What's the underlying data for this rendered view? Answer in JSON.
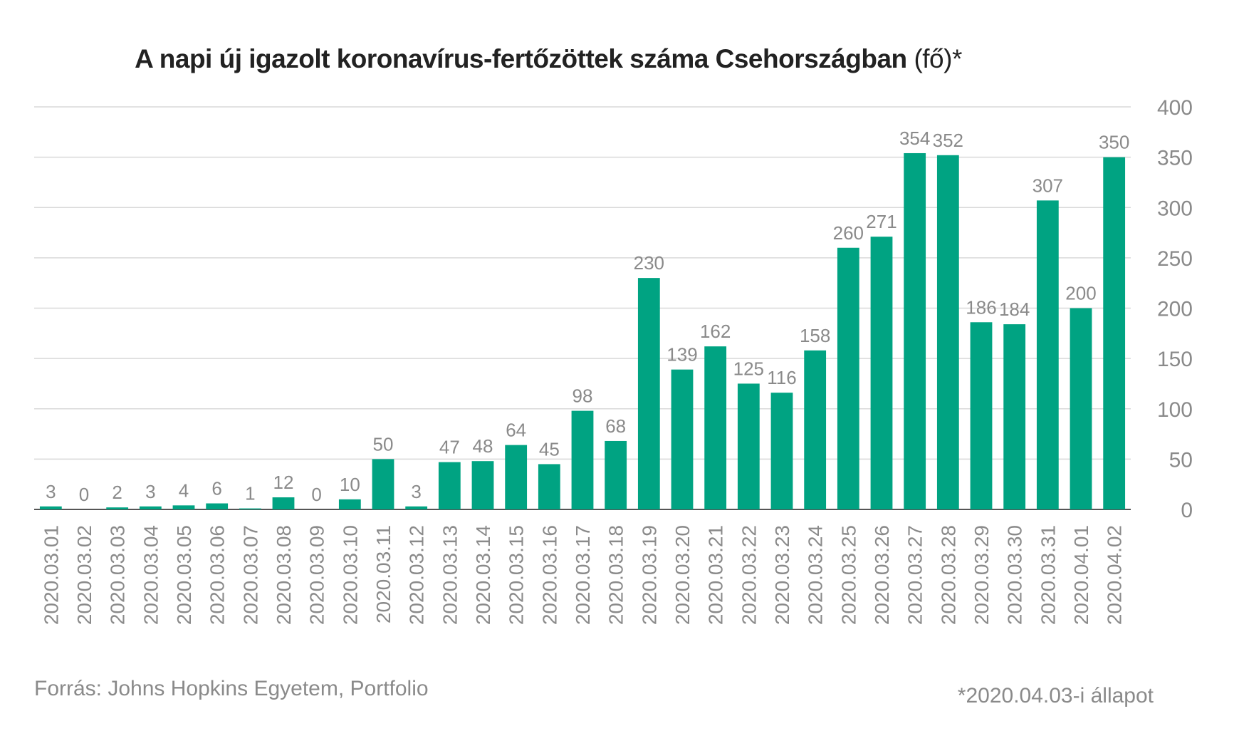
{
  "title_main": "A napi új igazolt koronavírus-fertőzöttek száma Csehországban",
  "title_unit": "(fő)*",
  "source": "Forrás: Johns Hopkins Egyetem, Portfolio",
  "footnote": "*2020.04.03-i állapot",
  "colors": {
    "bar": "#00a382",
    "grid": "#d9d9d9",
    "axis": "#555555",
    "text": "#8a8a8a"
  },
  "chart_data": {
    "type": "bar",
    "title": "A napi új igazolt koronavírus-fertőzöttek száma Csehországban (fő)*",
    "categories": [
      "2020.03.01",
      "2020.03.02",
      "2020.03.03",
      "2020.03.04",
      "2020.03.05",
      "2020.03.06",
      "2020.03.07",
      "2020.03.08",
      "2020.03.09",
      "2020.03.10",
      "2020.03.11",
      "2020.03.12",
      "2020.03.13",
      "2020.03.14",
      "2020.03.15",
      "2020.03.16",
      "2020.03.17",
      "2020.03.18",
      "2020.03.19",
      "2020.03.20",
      "2020.03.21",
      "2020.03.22",
      "2020.03.23",
      "2020.03.24",
      "2020.03.25",
      "2020.03.26",
      "2020.03.27",
      "2020.03.28",
      "2020.03.29",
      "2020.03.30",
      "2020.03.31",
      "2020.04.01",
      "2020.04.02"
    ],
    "values": [
      3,
      0,
      2,
      3,
      4,
      6,
      1,
      12,
      0,
      10,
      50,
      3,
      47,
      48,
      64,
      45,
      98,
      68,
      230,
      139,
      162,
      125,
      116,
      158,
      260,
      271,
      354,
      352,
      186,
      184,
      307,
      200,
      350
    ],
    "ylim": [
      0,
      400
    ],
    "yticks": [
      0,
      50,
      100,
      150,
      200,
      250,
      300,
      350,
      400
    ],
    "y_axis_side": "right",
    "grid": true,
    "data_labels": true
  }
}
